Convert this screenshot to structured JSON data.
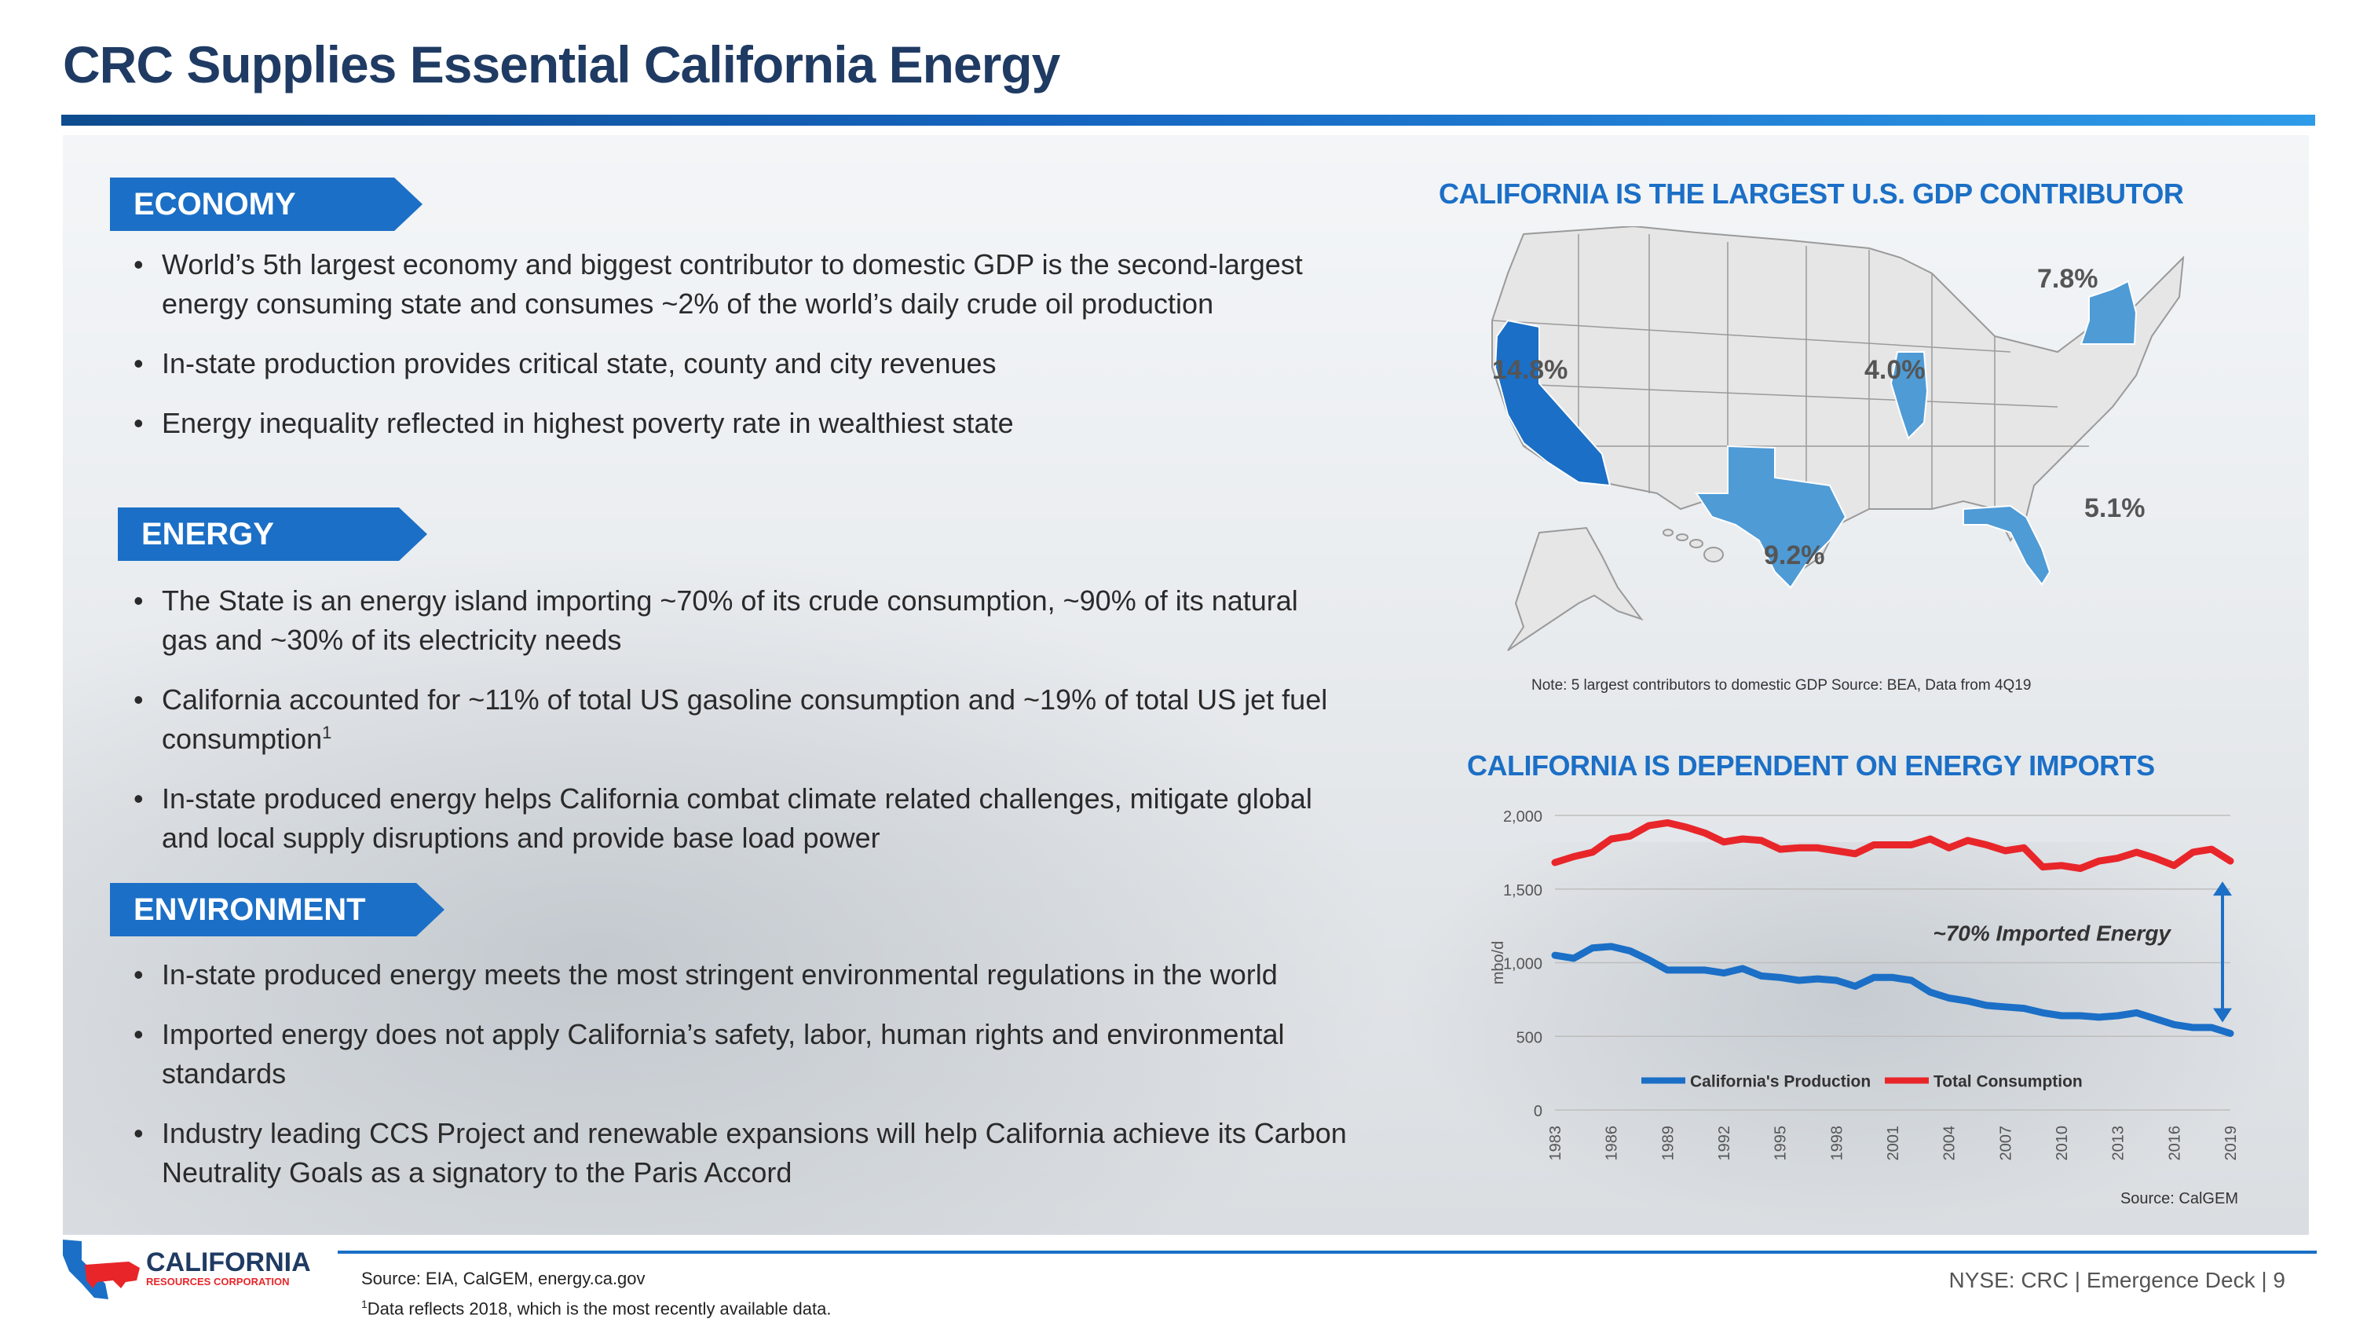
{
  "title": "CRC Supplies Essential California Energy",
  "sections": [
    {
      "tag": "ECONOMY",
      "bullets": [
        "World’s 5th largest economy and biggest contributor to domestic GDP is the second-largest energy consuming state and consumes ~2% of the world’s daily crude oil production",
        "In-state production provides critical state, county and city revenues",
        "Energy inequality reflected in highest poverty rate in wealthiest state"
      ]
    },
    {
      "tag": "ENERGY",
      "bullets": [
        "The State is an energy island importing ~70% of its crude consumption, ~90% of its natural gas and ~30% of its electricity needs",
        "California accounted for ~11% of total US gasoline consumption and ~19% of total US jet fuel consumption",
        "In-state produced energy helps California combat climate related challenges, mitigate global and local supply disruptions and provide base load power"
      ]
    },
    {
      "tag": "ENVIRONMENT",
      "bullets": [
        "In-state produced energy meets the most stringent environmental regulations in the world",
        "Imported energy does not apply California’s safety, labor, human rights and environmental standards",
        "Industry leading CCS Project and renewable expansions will help California achieve its Carbon Neutrality Goals as a signatory to the Paris Accord"
      ]
    }
  ],
  "footnote_mark": "1",
  "map": {
    "title": "CALIFORNIA IS THE LARGEST U.S. GDP CONTRIBUTOR",
    "labels": {
      "ca": "14.8%",
      "tx": "9.2%",
      "ny": "7.8%",
      "fl": "5.1%",
      "il": "4.0%"
    },
    "note": "Note:  5 largest contributors to domestic GDP Source: BEA, Data from 4Q19",
    "colors": {
      "highlight_dark": "#1b6fc6",
      "highlight_light": "#4e9bd6",
      "state": "#e6e6e6",
      "border": "#9a9a9a"
    }
  },
  "chart_data": {
    "type": "line",
    "title": "CALIFORNIA IS DEPENDENT ON ENERGY IMPORTS",
    "ylabel": "mbo/d",
    "ylim": [
      0,
      2000
    ],
    "yticks": [
      "0",
      "500",
      "1,000",
      "1,500",
      "2,000"
    ],
    "x": [
      1983,
      1984,
      1985,
      1986,
      1987,
      1988,
      1989,
      1990,
      1991,
      1992,
      1993,
      1994,
      1995,
      1996,
      1997,
      1998,
      1999,
      2000,
      2001,
      2002,
      2003,
      2004,
      2005,
      2006,
      2007,
      2008,
      2009,
      2010,
      2011,
      2012,
      2013,
      2014,
      2015,
      2016,
      2017,
      2018,
      2019
    ],
    "xticks": [
      "1983",
      "1986",
      "1989",
      "1992",
      "1995",
      "1998",
      "2001",
      "2004",
      "2007",
      "2010",
      "2013",
      "2016",
      "2019"
    ],
    "series": [
      {
        "name": "California's Production",
        "color": "#1b6fc6",
        "values": [
          1050,
          1030,
          1100,
          1110,
          1080,
          1020,
          950,
          950,
          950,
          930,
          960,
          910,
          900,
          880,
          890,
          880,
          840,
          900,
          900,
          880,
          800,
          760,
          740,
          710,
          700,
          690,
          660,
          640,
          640,
          630,
          640,
          660,
          620,
          580,
          560,
          560,
          520
        ]
      },
      {
        "name": "Total Consumption",
        "color": "#e8262a",
        "values": [
          1680,
          1720,
          1750,
          1840,
          1860,
          1930,
          1950,
          1920,
          1880,
          1820,
          1840,
          1830,
          1770,
          1780,
          1780,
          1760,
          1740,
          1800,
          1800,
          1800,
          1840,
          1780,
          1830,
          1800,
          1760,
          1780,
          1650,
          1660,
          1640,
          1690,
          1710,
          1750,
          1710,
          1660,
          1750,
          1770,
          1690
        ]
      }
    ],
    "annotation": "~70% Imported Energy",
    "source": "Source: CalGEM"
  },
  "footer": {
    "source": "Source: EIA, CalGEM, energy.ca.gov",
    "data_note_mark": "1",
    "data_note": "Data reflects 2018, which is the most recently available data.",
    "page_ref": "NYSE: CRC | Emergence Deck | 9"
  },
  "logo": {
    "line1": "CALIFORNIA",
    "line2": "RESOURCES CORPORATION"
  }
}
